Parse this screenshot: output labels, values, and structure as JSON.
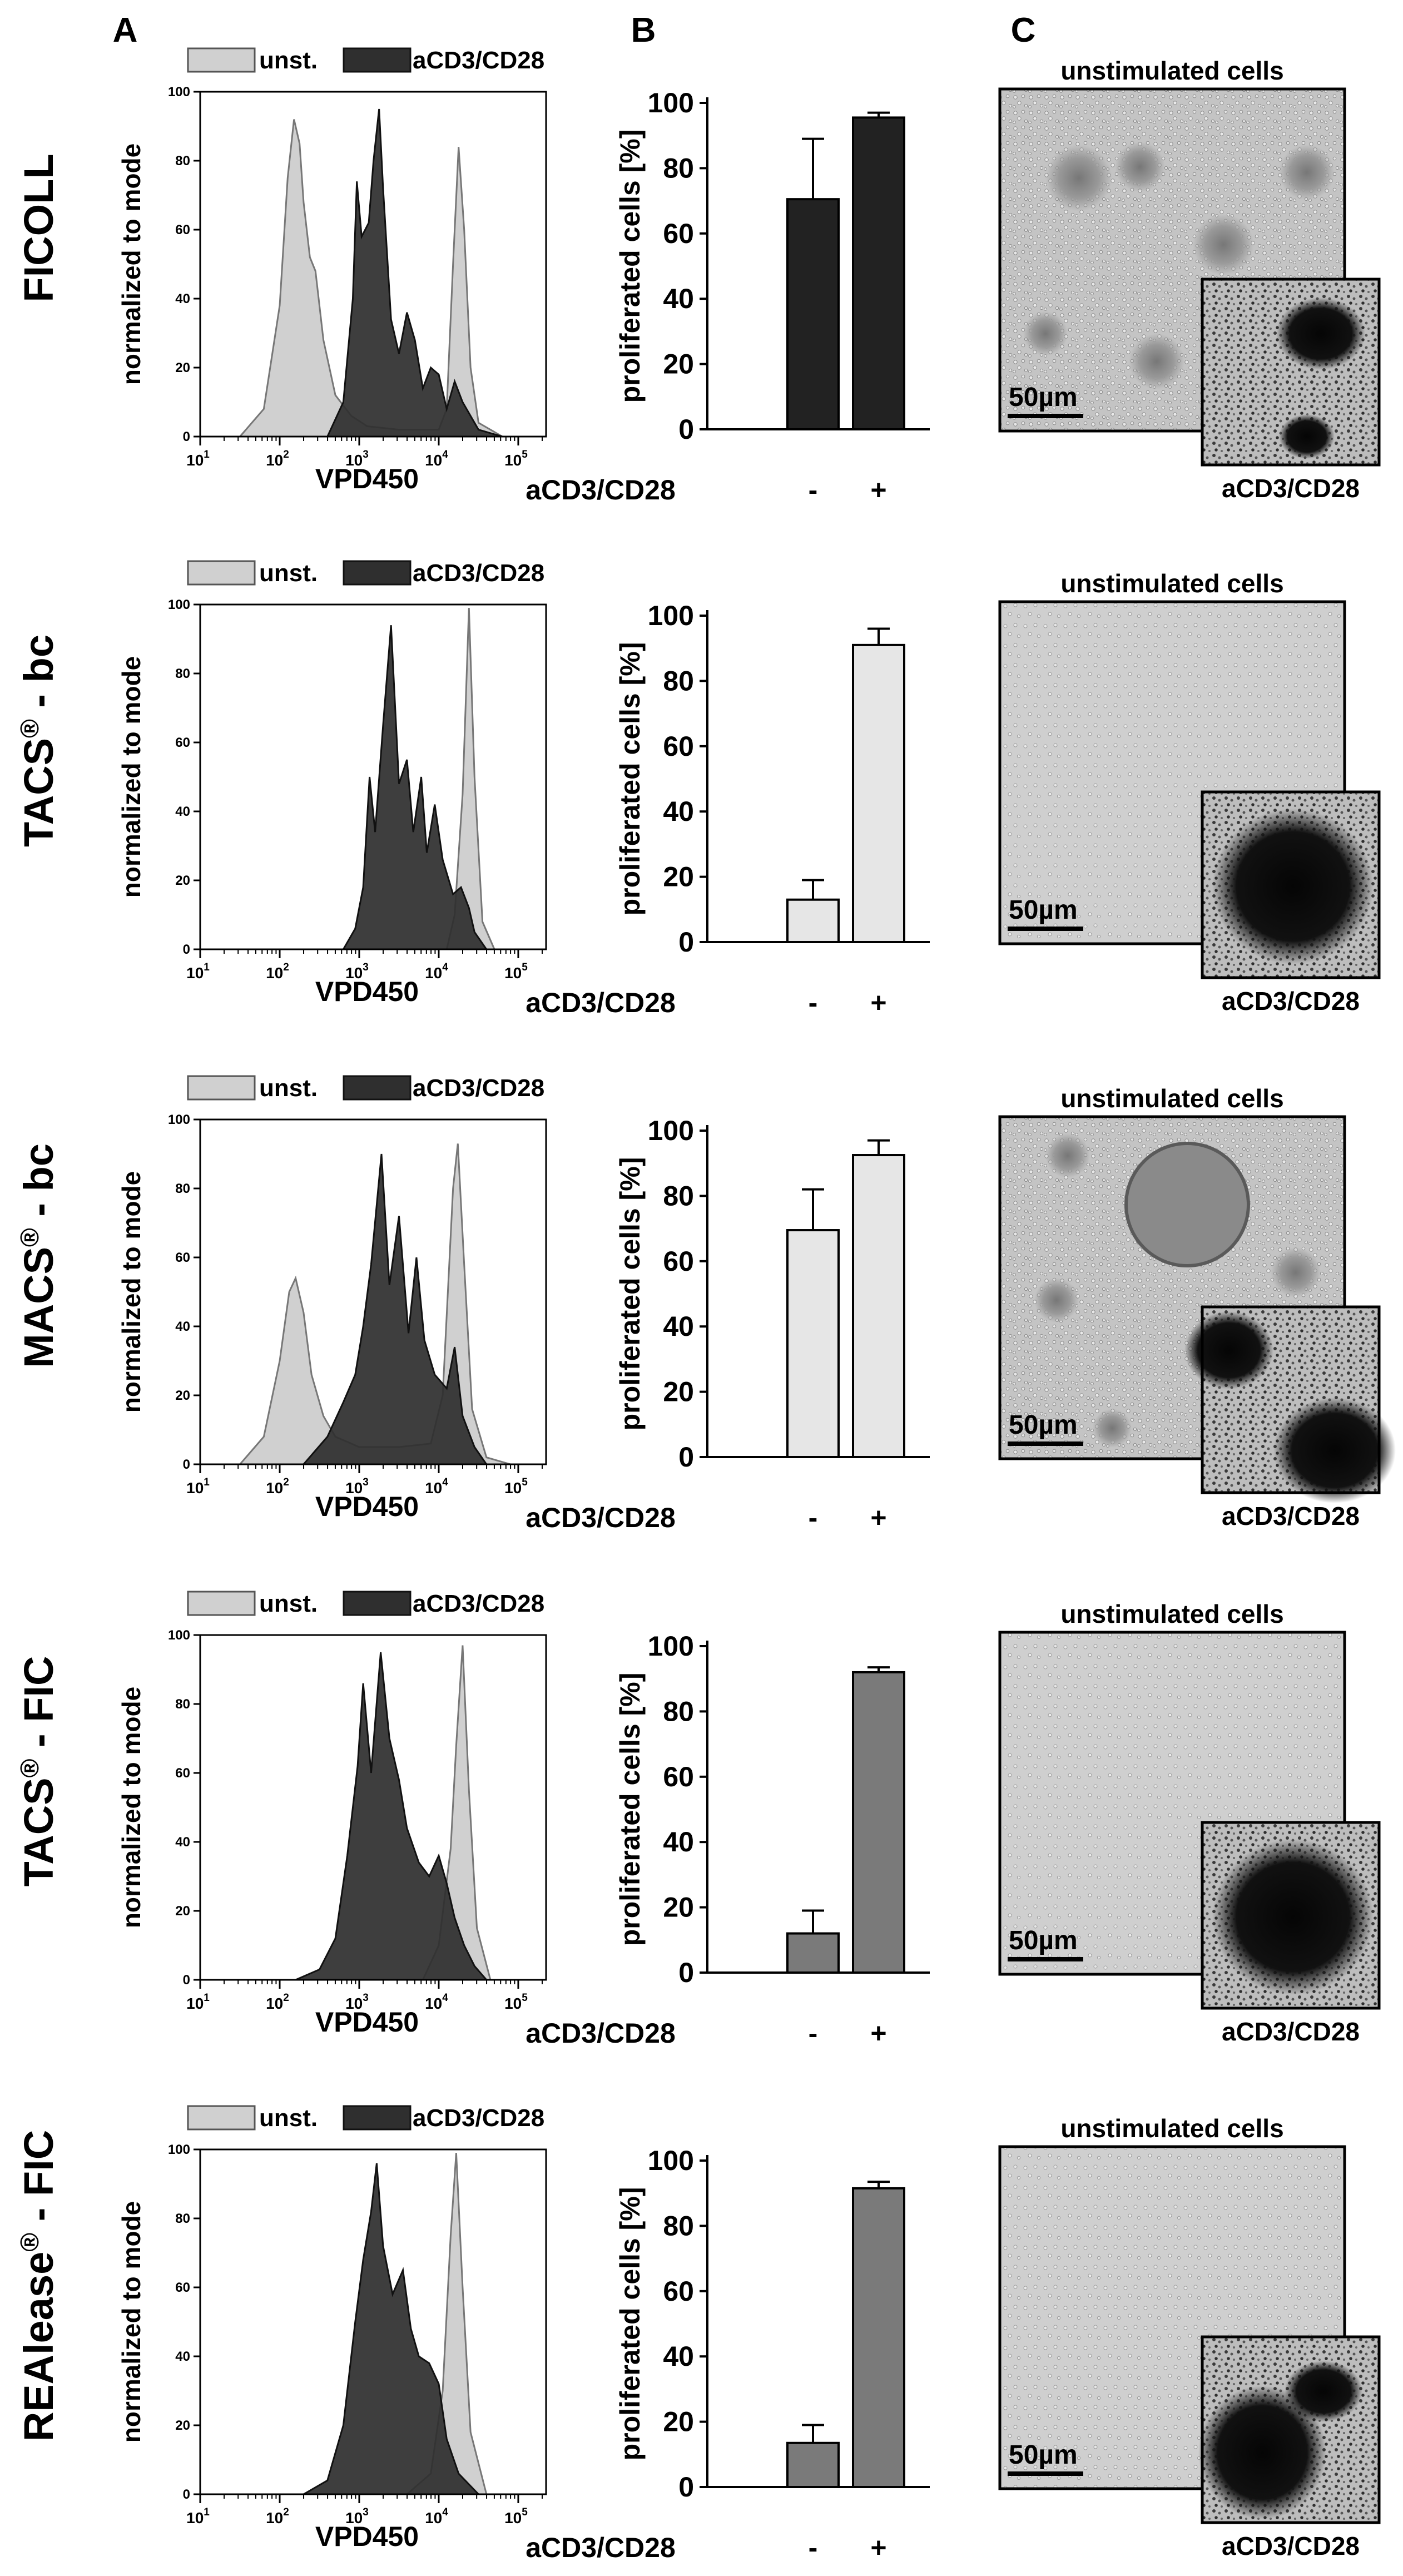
{
  "panel_letters": [
    "A",
    "B",
    "C"
  ],
  "common": {
    "hist_ylabel": "normalized to mode",
    "hist_xlabel": "VPD450",
    "hist_yticks": [
      "0",
      "20",
      "40",
      "60",
      "80",
      "100"
    ],
    "hist_xticks": [
      {
        "base": "10",
        "exp": "1"
      },
      {
        "base": "10",
        "exp": "2"
      },
      {
        "base": "10",
        "exp": "3"
      },
      {
        "base": "10",
        "exp": "4"
      },
      {
        "base": "10",
        "exp": "5"
      }
    ],
    "legend_unst": "unst.",
    "legend_stim": "aCD3/CD28",
    "bar_ylabel": "proliferated cells [%]",
    "bar_yticks": [
      "0",
      "20",
      "40",
      "60",
      "80",
      "100"
    ],
    "bar_xrow_label": "aCD3/CD28",
    "bar_categories": [
      "-",
      "+"
    ],
    "micro_title": "unstimulated  cells",
    "micro_inset_label": "aCD3/CD28",
    "scale_bar": "50µm"
  },
  "colors": {
    "unst_fill": "#d0d0d0",
    "stim_fill": "#2f2f2f",
    "bar_dark": "#222222",
    "bar_light": "#e6e6e6",
    "bar_mid": "#7a7a7a"
  },
  "rows": [
    {
      "method": "FICOLL",
      "method_prefix": "FICOLL",
      "method_sup": "",
      "method_suffix": ""
    },
    {
      "method": "TACS® - bc",
      "method_prefix": "TACS",
      "method_sup": "®",
      "method_suffix": " - bc"
    },
    {
      "method": "MACS® - bc",
      "method_prefix": "MACS",
      "method_sup": "®",
      "method_suffix": " - bc"
    },
    {
      "method": "TACS® - FIC",
      "method_prefix": "TACS",
      "method_sup": "®",
      "method_suffix": " - FIC"
    },
    {
      "method": "REAlease® - FIC",
      "method_prefix": "REAlease",
      "method_sup": "®",
      "method_suffix": " - FIC"
    }
  ],
  "chart_data": [
    {
      "type": "area",
      "panel": "A",
      "row": "FICOLL",
      "xlabel": "VPD450",
      "ylabel": "normalized to mode",
      "xscale": "log",
      "xlim": [
        1,
        5.35
      ],
      "ylim": [
        0,
        100
      ],
      "series": [
        {
          "name": "unst.",
          "points": [
            [
              1.5,
              0
            ],
            [
              1.8,
              8
            ],
            [
              2.0,
              38
            ],
            [
              2.1,
              75
            ],
            [
              2.18,
              92
            ],
            [
              2.25,
              85
            ],
            [
              2.3,
              68
            ],
            [
              2.38,
              52
            ],
            [
              2.45,
              48
            ],
            [
              2.55,
              28
            ],
            [
              2.7,
              12
            ],
            [
              2.9,
              6
            ],
            [
              3.1,
              3
            ],
            [
              3.5,
              2
            ],
            [
              3.8,
              2
            ],
            [
              4.0,
              2
            ],
            [
              4.1,
              8
            ],
            [
              4.18,
              50
            ],
            [
              4.25,
              84
            ],
            [
              4.32,
              60
            ],
            [
              4.4,
              20
            ],
            [
              4.5,
              4
            ],
            [
              4.8,
              0
            ]
          ]
        },
        {
          "name": "aCD3/CD28",
          "points": [
            [
              2.6,
              0
            ],
            [
              2.8,
              10
            ],
            [
              2.92,
              40
            ],
            [
              2.97,
              74
            ],
            [
              3.03,
              58
            ],
            [
              3.12,
              62
            ],
            [
              3.18,
              80
            ],
            [
              3.25,
              95
            ],
            [
              3.3,
              72
            ],
            [
              3.4,
              34
            ],
            [
              3.5,
              24
            ],
            [
              3.6,
              36
            ],
            [
              3.7,
              28
            ],
            [
              3.8,
              14
            ],
            [
              3.9,
              20
            ],
            [
              4.0,
              18
            ],
            [
              4.1,
              8
            ],
            [
              4.2,
              16
            ],
            [
              4.3,
              10
            ],
            [
              4.5,
              2
            ],
            [
              4.8,
              0
            ]
          ]
        }
      ]
    },
    {
      "type": "bar",
      "panel": "B",
      "row": "FICOLL",
      "ylabel": "proliferated cells [%]",
      "ylim": [
        0,
        100
      ],
      "categories": [
        "-",
        "+"
      ],
      "values": [
        70.5,
        95.5
      ],
      "errors": [
        18.5,
        1.5
      ]
    },
    {
      "type": "area",
      "panel": "A",
      "row": "TACS® - bc",
      "xlabel": "VPD450",
      "ylabel": "normalized to mode",
      "xscale": "log",
      "xlim": [
        1,
        5.35
      ],
      "ylim": [
        0,
        100
      ],
      "series": [
        {
          "name": "unst.",
          "points": [
            [
              4.1,
              0
            ],
            [
              4.2,
              10
            ],
            [
              4.3,
              45
            ],
            [
              4.38,
              99
            ],
            [
              4.45,
              50
            ],
            [
              4.55,
              8
            ],
            [
              4.7,
              0
            ]
          ]
        },
        {
          "name": "aCD3/CD28",
          "points": [
            [
              2.8,
              0
            ],
            [
              2.95,
              6
            ],
            [
              3.05,
              18
            ],
            [
              3.13,
              50
            ],
            [
              3.2,
              34
            ],
            [
              3.3,
              65
            ],
            [
              3.4,
              94
            ],
            [
              3.5,
              48
            ],
            [
              3.6,
              55
            ],
            [
              3.68,
              34
            ],
            [
              3.78,
              50
            ],
            [
              3.85,
              28
            ],
            [
              3.95,
              42
            ],
            [
              4.05,
              26
            ],
            [
              4.18,
              16
            ],
            [
              4.28,
              18
            ],
            [
              4.38,
              12
            ],
            [
              4.45,
              5
            ],
            [
              4.6,
              0
            ]
          ]
        }
      ]
    },
    {
      "type": "bar",
      "panel": "B",
      "row": "TACS® - bc",
      "ylabel": "proliferated cells [%]",
      "ylim": [
        0,
        100
      ],
      "categories": [
        "-",
        "+"
      ],
      "values": [
        13,
        91
      ],
      "errors": [
        6,
        5
      ]
    },
    {
      "type": "area",
      "panel": "A",
      "row": "MACS® - bc",
      "xlabel": "VPD450",
      "ylabel": "normalized to mode",
      "xscale": "log",
      "xlim": [
        1,
        5.35
      ],
      "ylim": [
        0,
        100
      ],
      "series": [
        {
          "name": "unst.",
          "points": [
            [
              1.5,
              0
            ],
            [
              1.8,
              8
            ],
            [
              2.0,
              30
            ],
            [
              2.12,
              50
            ],
            [
              2.2,
              54
            ],
            [
              2.3,
              44
            ],
            [
              2.4,
              26
            ],
            [
              2.55,
              14
            ],
            [
              2.7,
              8
            ],
            [
              3.0,
              5
            ],
            [
              3.5,
              5
            ],
            [
              3.9,
              6
            ],
            [
              4.05,
              20
            ],
            [
              4.18,
              80
            ],
            [
              4.24,
              93
            ],
            [
              4.32,
              58
            ],
            [
              4.42,
              16
            ],
            [
              4.6,
              2
            ],
            [
              4.9,
              0
            ]
          ]
        },
        {
          "name": "aCD3/CD28",
          "points": [
            [
              2.3,
              0
            ],
            [
              2.6,
              8
            ],
            [
              2.8,
              18
            ],
            [
              2.95,
              26
            ],
            [
              3.05,
              40
            ],
            [
              3.15,
              58
            ],
            [
              3.28,
              90
            ],
            [
              3.38,
              52
            ],
            [
              3.5,
              72
            ],
            [
              3.62,
              38
            ],
            [
              3.72,
              60
            ],
            [
              3.82,
              36
            ],
            [
              3.95,
              26
            ],
            [
              4.1,
              22
            ],
            [
              4.2,
              34
            ],
            [
              4.3,
              14
            ],
            [
              4.45,
              5
            ],
            [
              4.6,
              0
            ]
          ]
        }
      ]
    },
    {
      "type": "bar",
      "panel": "B",
      "row": "MACS® - bc",
      "ylabel": "proliferated cells [%]",
      "ylim": [
        0,
        100
      ],
      "categories": [
        "-",
        "+"
      ],
      "values": [
        69.5,
        92.5
      ],
      "errors": [
        12.5,
        4.5
      ]
    },
    {
      "type": "area",
      "panel": "A",
      "row": "TACS® - FIC",
      "xlabel": "VPD450",
      "ylabel": "normalized to mode",
      "xscale": "log",
      "xlim": [
        1,
        5.35
      ],
      "ylim": [
        0,
        100
      ],
      "series": [
        {
          "name": "unst.",
          "points": [
            [
              3.8,
              0
            ],
            [
              4.0,
              10
            ],
            [
              4.15,
              38
            ],
            [
              4.22,
              68
            ],
            [
              4.3,
              97
            ],
            [
              4.38,
              55
            ],
            [
              4.48,
              15
            ],
            [
              4.65,
              0
            ]
          ]
        },
        {
          "name": "aCD3/CD28",
          "points": [
            [
              2.2,
              0
            ],
            [
              2.5,
              3
            ],
            [
              2.7,
              12
            ],
            [
              2.85,
              36
            ],
            [
              2.98,
              62
            ],
            [
              3.05,
              86
            ],
            [
              3.15,
              60
            ],
            [
              3.27,
              95
            ],
            [
              3.38,
              70
            ],
            [
              3.5,
              58
            ],
            [
              3.6,
              44
            ],
            [
              3.75,
              34
            ],
            [
              3.88,
              30
            ],
            [
              4.0,
              36
            ],
            [
              4.1,
              28
            ],
            [
              4.2,
              18
            ],
            [
              4.32,
              10
            ],
            [
              4.45,
              4
            ],
            [
              4.6,
              0
            ]
          ]
        }
      ]
    },
    {
      "type": "bar",
      "panel": "B",
      "row": "TACS® - FIC",
      "ylabel": "proliferated cells [%]",
      "ylim": [
        0,
        100
      ],
      "categories": [
        "-",
        "+"
      ],
      "values": [
        12,
        92
      ],
      "errors": [
        7,
        1.5
      ]
    },
    {
      "type": "area",
      "panel": "A",
      "row": "REAlease® - FIC",
      "xlabel": "VPD450",
      "ylabel": "normalized to mode",
      "xscale": "log",
      "xlim": [
        1,
        5.35
      ],
      "ylim": [
        0,
        100
      ],
      "series": [
        {
          "name": "unst.",
          "points": [
            [
              3.6,
              0
            ],
            [
              3.9,
              6
            ],
            [
              4.05,
              30
            ],
            [
              4.15,
              75
            ],
            [
              4.22,
              99
            ],
            [
              4.3,
              60
            ],
            [
              4.4,
              18
            ],
            [
              4.6,
              0
            ]
          ]
        },
        {
          "name": "aCD3/CD28",
          "points": [
            [
              2.3,
              0
            ],
            [
              2.6,
              4
            ],
            [
              2.8,
              20
            ],
            [
              2.95,
              50
            ],
            [
              3.05,
              68
            ],
            [
              3.15,
              82
            ],
            [
              3.22,
              96
            ],
            [
              3.3,
              72
            ],
            [
              3.42,
              58
            ],
            [
              3.55,
              65
            ],
            [
              3.65,
              48
            ],
            [
              3.75,
              40
            ],
            [
              3.88,
              38
            ],
            [
              4.0,
              32
            ],
            [
              4.1,
              16
            ],
            [
              4.25,
              6
            ],
            [
              4.5,
              0
            ]
          ]
        }
      ]
    },
    {
      "type": "bar",
      "panel": "B",
      "row": "REAlease® - FIC",
      "ylabel": "proliferated cells [%]",
      "ylim": [
        0,
        100
      ],
      "categories": [
        "-",
        "+"
      ],
      "values": [
        13.5,
        91.5
      ],
      "errors": [
        5.5,
        2
      ]
    }
  ]
}
